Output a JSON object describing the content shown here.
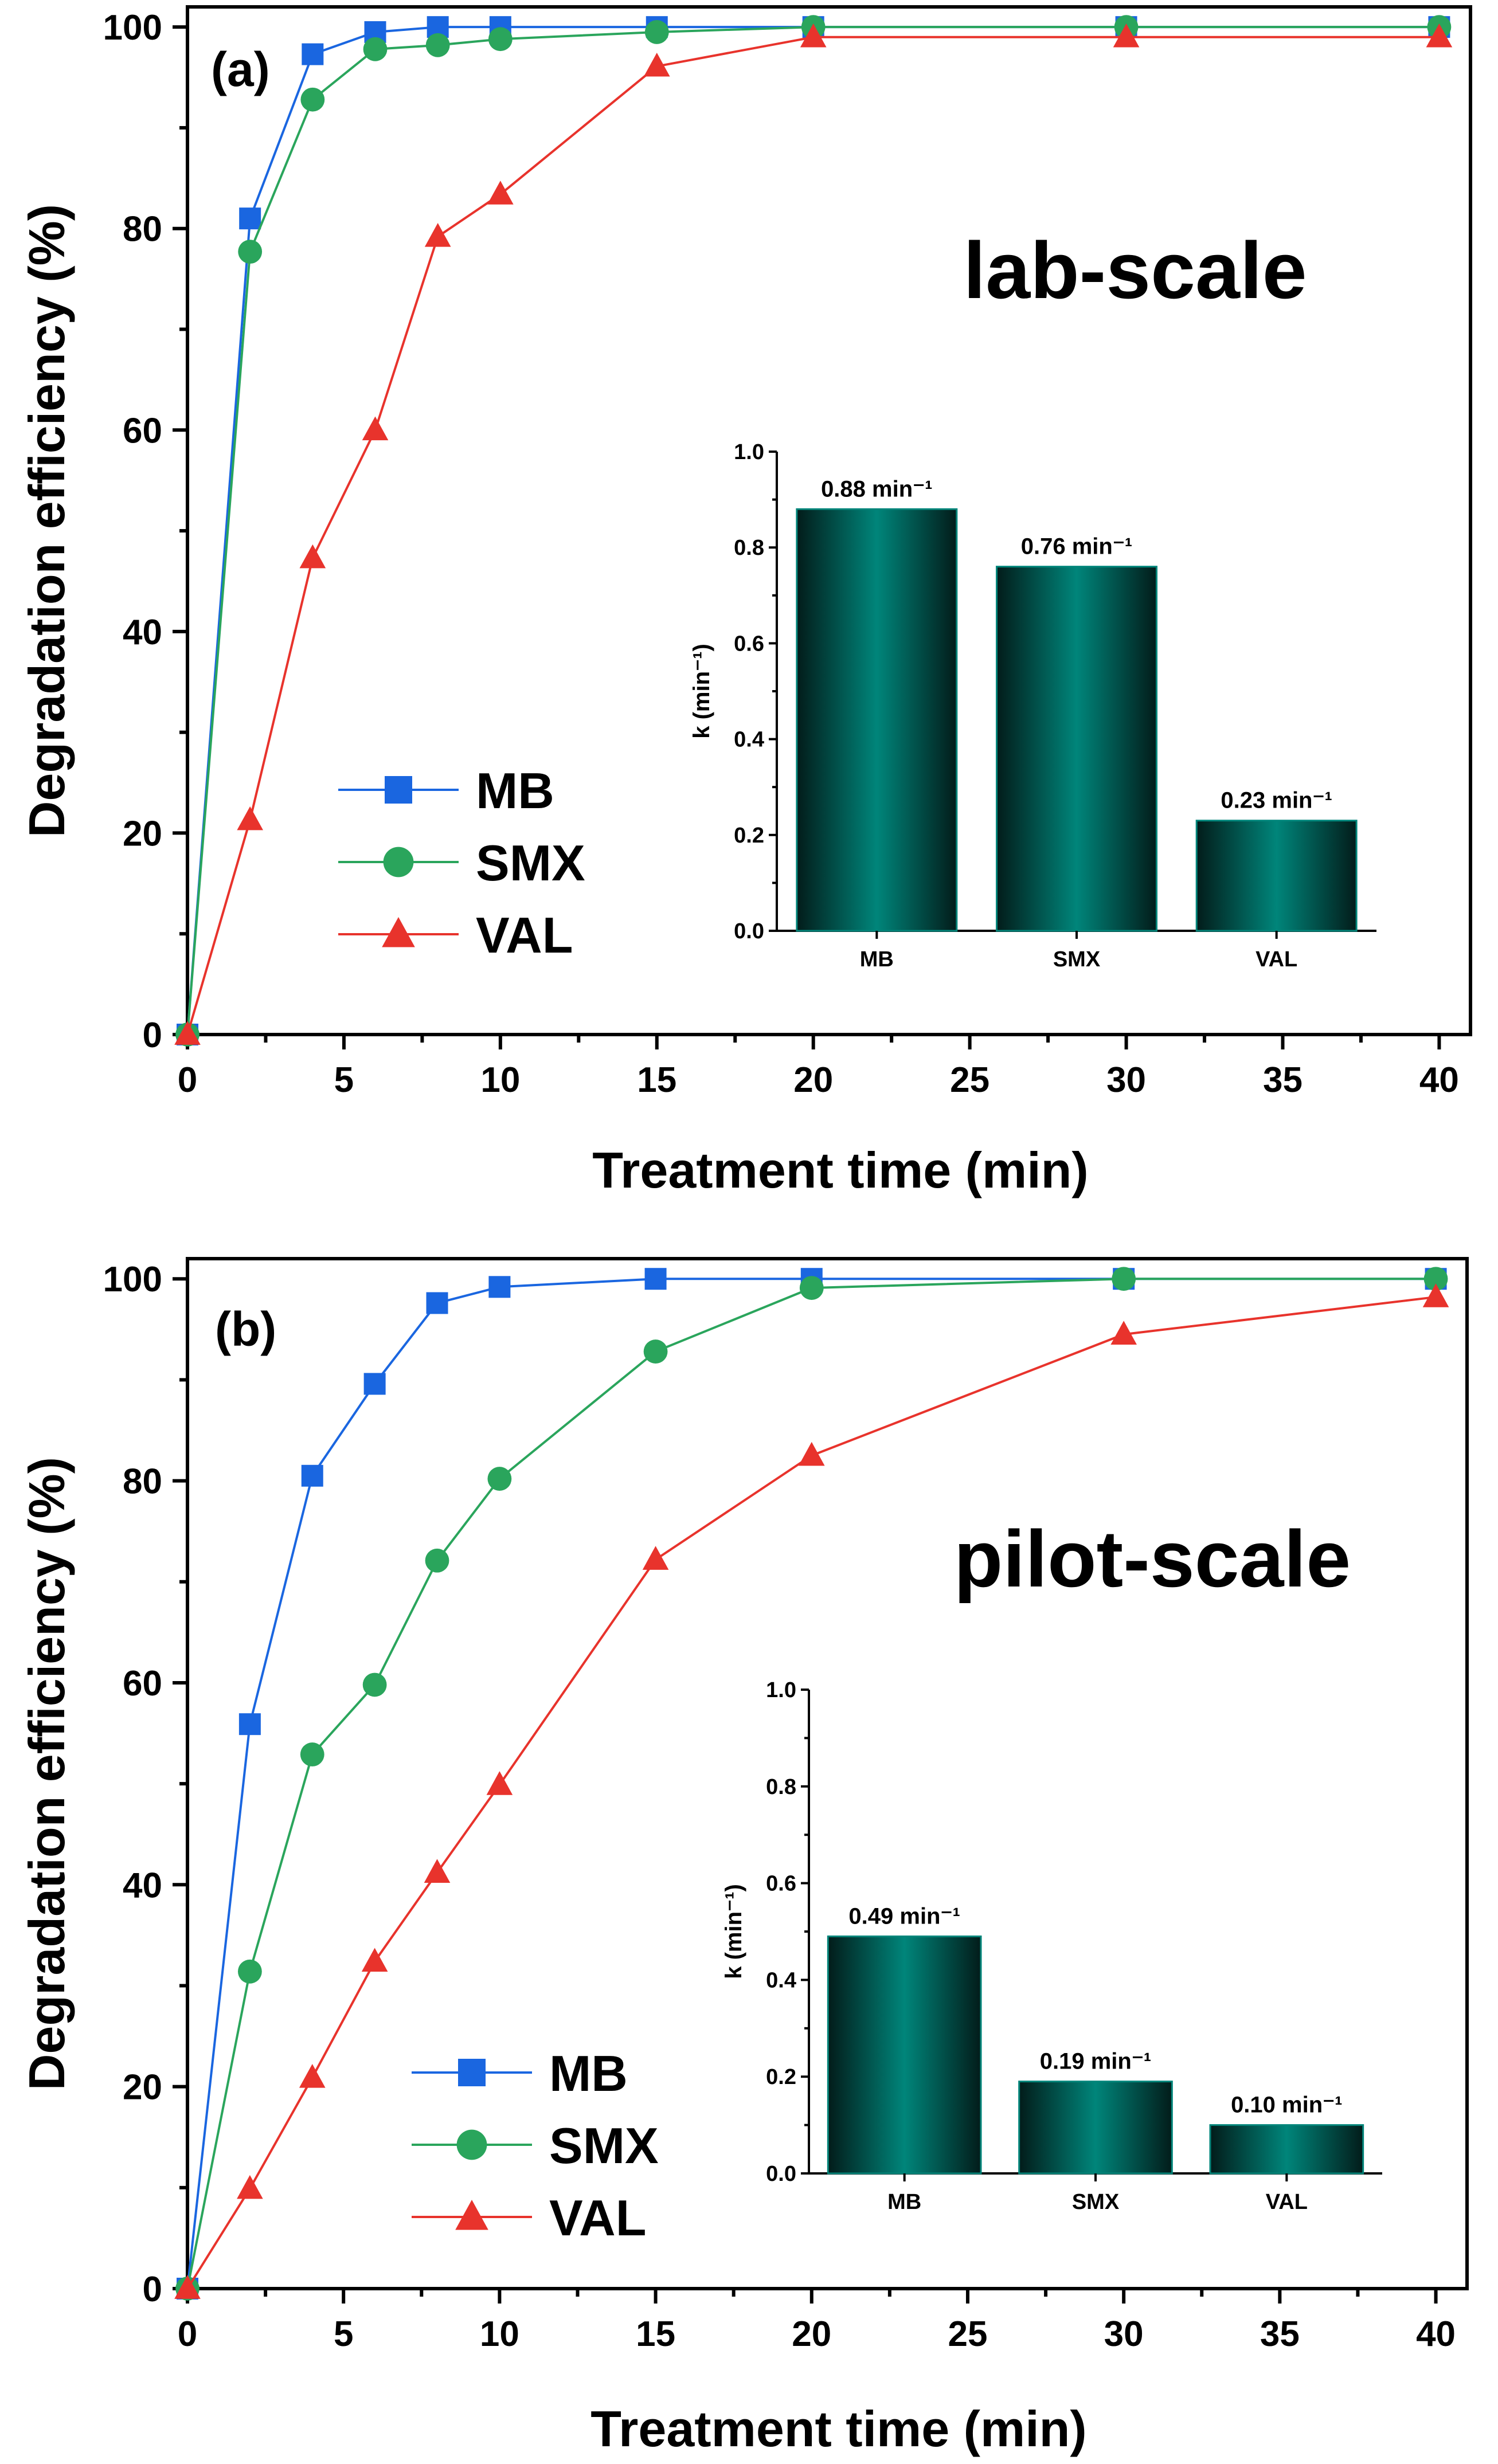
{
  "chart_data": [
    {
      "panel": "(a)",
      "type": "line",
      "annotation": "lab-scale",
      "xlabel": "Treatment time (min)",
      "ylabel": "Degradation efficiency (%)",
      "x": [
        0,
        2,
        4,
        6,
        8,
        10,
        15,
        20,
        30,
        40
      ],
      "xticks": [
        "0",
        "5",
        "10",
        "15",
        "20",
        "25",
        "30",
        "35",
        "40"
      ],
      "xtick_values": [
        0,
        5,
        10,
        15,
        20,
        25,
        30,
        35,
        40
      ],
      "yticks": [
        "0",
        "20",
        "40",
        "60",
        "80",
        "100"
      ],
      "ytick_values": [
        0,
        20,
        40,
        60,
        80,
        100
      ],
      "xlim": [
        0,
        41
      ],
      "ylim": [
        0,
        102
      ],
      "legend_position": "lower-left",
      "series": [
        {
          "name": "MB",
          "marker": "square",
          "color": "#1a66e0",
          "values": [
            0,
            81.0,
            97.3,
            99.5,
            100,
            100,
            100,
            100,
            100,
            100
          ]
        },
        {
          "name": "SMX",
          "marker": "circle",
          "color": "#2aa55c",
          "values": [
            0,
            77.7,
            92.8,
            97.8,
            98.2,
            98.8,
            99.5,
            100,
            100,
            100
          ]
        },
        {
          "name": "VAL",
          "marker": "triangle",
          "color": "#e8332c",
          "values": [
            0,
            21.3,
            47.3,
            60.0,
            79.2,
            83.4,
            96.1,
            99.0,
            99.0,
            99.0
          ]
        }
      ],
      "inset": {
        "type": "bar",
        "ylabel": "k (min⁻¹)",
        "categories": [
          "MB",
          "SMX",
          "VAL"
        ],
        "values": [
          0.88,
          0.76,
          0.23
        ],
        "bar_labels": [
          "0.88 min⁻¹",
          "0.76 min⁻¹",
          "0.23 min⁻¹"
        ],
        "yticks": [
          "0.0",
          "0.2",
          "0.4",
          "0.6",
          "0.8",
          "1.0"
        ],
        "ytick_values": [
          0,
          0.2,
          0.4,
          0.6,
          0.8,
          1.0
        ],
        "ylim": [
          0,
          1.0
        ],
        "bar_color": "#00857a"
      }
    },
    {
      "panel": "(b)",
      "type": "line",
      "annotation": "pilot-scale",
      "xlabel": "Treatment time (min)",
      "ylabel": "Degradation efficiency (%)",
      "x": [
        0,
        2,
        4,
        6,
        8,
        10,
        15,
        20,
        30,
        40
      ],
      "xticks": [
        "0",
        "5",
        "10",
        "15",
        "20",
        "25",
        "30",
        "35",
        "40"
      ],
      "xtick_values": [
        0,
        5,
        10,
        15,
        20,
        25,
        30,
        35,
        40
      ],
      "yticks": [
        "0",
        "20",
        "40",
        "60",
        "80",
        "100"
      ],
      "ytick_values": [
        0,
        20,
        40,
        60,
        80,
        100
      ],
      "xlim": [
        0,
        41
      ],
      "ylim": [
        0,
        102
      ],
      "legend_position": "lower-left",
      "series": [
        {
          "name": "MB",
          "marker": "square",
          "color": "#1a66e0",
          "values": [
            0,
            55.9,
            80.5,
            89.6,
            97.6,
            99.2,
            100,
            100,
            100,
            100
          ]
        },
        {
          "name": "SMX",
          "marker": "circle",
          "color": "#2aa55c",
          "values": [
            0,
            31.4,
            52.9,
            59.8,
            72.1,
            80.2,
            92.8,
            99.1,
            100,
            100
          ]
        },
        {
          "name": "VAL",
          "marker": "triangle",
          "color": "#e8332c",
          "values": [
            0,
            9.9,
            20.9,
            32.4,
            41.2,
            49.9,
            72.2,
            82.5,
            94.5,
            98.2
          ]
        }
      ],
      "inset": {
        "type": "bar",
        "ylabel": "k (min⁻¹)",
        "categories": [
          "MB",
          "SMX",
          "VAL"
        ],
        "values": [
          0.49,
          0.19,
          0.1
        ],
        "bar_labels": [
          "0.49 min⁻¹",
          "0.19 min⁻¹",
          "0.10 min⁻¹"
        ],
        "yticks": [
          "0.0",
          "0.2",
          "0.4",
          "0.6",
          "0.8",
          "1.0"
        ],
        "ytick_values": [
          0,
          0.2,
          0.4,
          0.6,
          0.8,
          1.0
        ],
        "ylim": [
          0,
          1.0
        ],
        "bar_color": "#00857a"
      }
    }
  ]
}
